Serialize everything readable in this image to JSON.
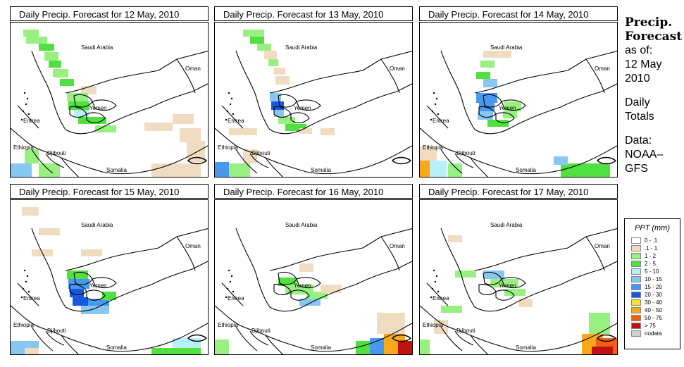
{
  "panels": [
    {
      "title": "Daily Precip. Forecast for  12 May, 2010"
    },
    {
      "title": "Daily Precip. Forecast for  13 May, 2010"
    },
    {
      "title": "Daily Precip. Forecast for  14 May, 2010"
    },
    {
      "title": "Daily Precip. Forecast for  15 May, 2010"
    },
    {
      "title": "Daily Precip. Forecast for  16 May, 2010"
    },
    {
      "title": "Daily Precip. Forecast for  17 May, 2010"
    }
  ],
  "map_labels": {
    "saudi_arabia": "Saudi Arabia",
    "oman": "Oman",
    "yemen": "Yemen",
    "eritrea": "Eritrea",
    "ethiopia": "Ethiopia",
    "djibouti": "Djibouti",
    "somalia": "Somalia"
  },
  "side": {
    "title_line1": "Precip.",
    "title_line2": "Forecast",
    "asof_line1": "as of:",
    "asof_line2": "12 May",
    "asof_line3": "2010",
    "daily_line1": "Daily",
    "daily_line2": "Totals",
    "data_line1": "Data:",
    "data_line2": "NOAA–",
    "data_line3": "GFS"
  },
  "legend": {
    "title": "PPT (mm)",
    "items": [
      {
        "label": "0 - .1",
        "color": "#ffffff"
      },
      {
        "label": ".1 - 1",
        "color": "#f0dcc0"
      },
      {
        "label": "1 - 2",
        "color": "#98f080"
      },
      {
        "label": "2 - 5",
        "color": "#50e040"
      },
      {
        "label": "5 - 10",
        "color": "#b8f0f8"
      },
      {
        "label": "10 - 15",
        "color": "#88c8f0"
      },
      {
        "label": "15 - 20",
        "color": "#4898f0"
      },
      {
        "label": "20 - 30",
        "color": "#1858e0"
      },
      {
        "label": "30 - 40",
        "color": "#f8e030"
      },
      {
        "label": "40 - 50",
        "color": "#f8a818"
      },
      {
        "label": "50 - 75",
        "color": "#f06010"
      },
      {
        "label": "> 75",
        "color": "#c01010"
      },
      {
        "label": "nodata",
        "color": "#d0d0d0"
      }
    ]
  }
}
